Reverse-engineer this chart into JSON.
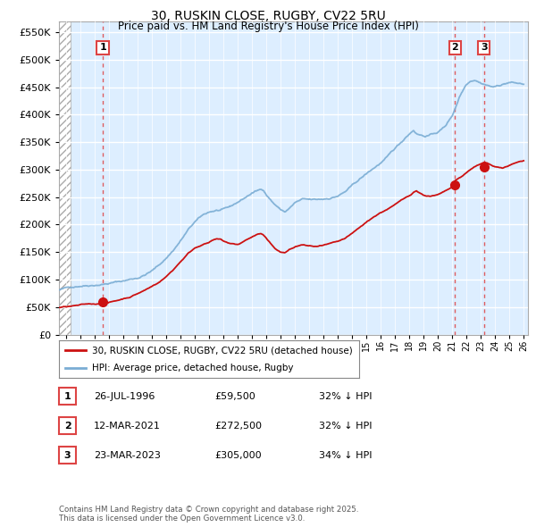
{
  "title": "30, RUSKIN CLOSE, RUGBY, CV22 5RU",
  "subtitle": "Price paid vs. HM Land Registry's House Price Index (HPI)",
  "ylim": [
    0,
    570000
  ],
  "yticks": [
    0,
    50000,
    100000,
    150000,
    200000,
    250000,
    300000,
    350000,
    400000,
    450000,
    500000,
    550000
  ],
  "xlim_start": 1993.5,
  "xlim_end": 2026.3,
  "hatch_end": 1994.3,
  "transactions": [
    {
      "year": 1996.57,
      "price": 59500,
      "label": "1"
    },
    {
      "year": 2021.19,
      "price": 272500,
      "label": "2"
    },
    {
      "year": 2023.22,
      "price": 305000,
      "label": "3"
    }
  ],
  "hpi_color": "#7aadd4",
  "price_color": "#cc1111",
  "dashed_line_color": "#dd4444",
  "bg_color": "#ddeeff",
  "hatch_color": "#cccccc",
  "grid_color": "#ffffff",
  "legend_entries": [
    "30, RUSKIN CLOSE, RUGBY, CV22 5RU (detached house)",
    "HPI: Average price, detached house, Rugby"
  ],
  "table_rows": [
    {
      "num": "1",
      "date": "26-JUL-1996",
      "price": "£59,500",
      "hpi": "32% ↓ HPI"
    },
    {
      "num": "2",
      "date": "12-MAR-2021",
      "price": "£272,500",
      "hpi": "32% ↓ HPI"
    },
    {
      "num": "3",
      "date": "23-MAR-2023",
      "price": "£305,000",
      "hpi": "34% ↓ HPI"
    }
  ],
  "footer": "Contains HM Land Registry data © Crown copyright and database right 2025.\nThis data is licensed under the Open Government Licence v3.0.",
  "hpi_knots": [
    [
      1993.5,
      80000
    ],
    [
      1994.0,
      83000
    ],
    [
      1994.5,
      86000
    ],
    [
      1995.0,
      89000
    ],
    [
      1995.5,
      91000
    ],
    [
      1996.0,
      93000
    ],
    [
      1996.5,
      95000
    ],
    [
      1997.0,
      97000
    ],
    [
      1997.5,
      99000
    ],
    [
      1998.0,
      101000
    ],
    [
      1998.5,
      104000
    ],
    [
      1999.0,
      107000
    ],
    [
      1999.5,
      113000
    ],
    [
      2000.0,
      120000
    ],
    [
      2000.5,
      130000
    ],
    [
      2001.0,
      143000
    ],
    [
      2001.5,
      158000
    ],
    [
      2002.0,
      175000
    ],
    [
      2002.5,
      193000
    ],
    [
      2003.0,
      208000
    ],
    [
      2003.5,
      218000
    ],
    [
      2004.0,
      225000
    ],
    [
      2004.5,
      228000
    ],
    [
      2005.0,
      228000
    ],
    [
      2005.5,
      232000
    ],
    [
      2006.0,
      240000
    ],
    [
      2006.5,
      248000
    ],
    [
      2007.0,
      257000
    ],
    [
      2007.5,
      262000
    ],
    [
      2007.8,
      263000
    ],
    [
      2008.0,
      255000
    ],
    [
      2008.5,
      240000
    ],
    [
      2009.0,
      228000
    ],
    [
      2009.3,
      224000
    ],
    [
      2009.7,
      232000
    ],
    [
      2010.0,
      240000
    ],
    [
      2010.5,
      245000
    ],
    [
      2011.0,
      243000
    ],
    [
      2011.5,
      242000
    ],
    [
      2012.0,
      243000
    ],
    [
      2012.5,
      246000
    ],
    [
      2013.0,
      250000
    ],
    [
      2013.5,
      257000
    ],
    [
      2014.0,
      267000
    ],
    [
      2014.5,
      278000
    ],
    [
      2015.0,
      288000
    ],
    [
      2015.5,
      298000
    ],
    [
      2016.0,
      308000
    ],
    [
      2016.5,
      318000
    ],
    [
      2017.0,
      332000
    ],
    [
      2017.5,
      345000
    ],
    [
      2017.8,
      355000
    ],
    [
      2018.0,
      360000
    ],
    [
      2018.3,
      368000
    ],
    [
      2018.5,
      362000
    ],
    [
      2019.0,
      358000
    ],
    [
      2019.5,
      360000
    ],
    [
      2020.0,
      365000
    ],
    [
      2020.5,
      375000
    ],
    [
      2021.0,
      395000
    ],
    [
      2021.3,
      415000
    ],
    [
      2021.5,
      430000
    ],
    [
      2021.8,
      445000
    ],
    [
      2022.0,
      455000
    ],
    [
      2022.3,
      462000
    ],
    [
      2022.6,
      465000
    ],
    [
      2023.0,
      460000
    ],
    [
      2023.3,
      458000
    ],
    [
      2023.6,
      455000
    ],
    [
      2024.0,
      453000
    ],
    [
      2024.5,
      458000
    ],
    [
      2025.0,
      462000
    ],
    [
      2025.5,
      460000
    ],
    [
      2026.0,
      458000
    ]
  ],
  "price_knots": [
    [
      1993.5,
      54000
    ],
    [
      1994.0,
      55000
    ],
    [
      1994.5,
      56000
    ],
    [
      1995.0,
      57000
    ],
    [
      1995.5,
      58000
    ],
    [
      1996.0,
      58500
    ],
    [
      1996.57,
      59500
    ],
    [
      1997.0,
      62000
    ],
    [
      1997.5,
      65000
    ],
    [
      1998.0,
      69000
    ],
    [
      1998.5,
      73000
    ],
    [
      1999.0,
      79000
    ],
    [
      1999.5,
      85000
    ],
    [
      2000.0,
      92000
    ],
    [
      2000.5,
      100000
    ],
    [
      2001.0,
      110000
    ],
    [
      2001.5,
      123000
    ],
    [
      2002.0,
      138000
    ],
    [
      2002.5,
      152000
    ],
    [
      2003.0,
      163000
    ],
    [
      2003.5,
      170000
    ],
    [
      2004.0,
      174000
    ],
    [
      2004.3,
      178000
    ],
    [
      2004.5,
      179000
    ],
    [
      2004.8,
      178000
    ],
    [
      2005.0,
      175000
    ],
    [
      2005.5,
      170000
    ],
    [
      2006.0,
      168000
    ],
    [
      2006.3,
      172000
    ],
    [
      2006.7,
      178000
    ],
    [
      2007.0,
      182000
    ],
    [
      2007.3,
      186000
    ],
    [
      2007.6,
      188000
    ],
    [
      2007.8,
      185000
    ],
    [
      2008.0,
      178000
    ],
    [
      2008.3,
      168000
    ],
    [
      2008.6,
      160000
    ],
    [
      2009.0,
      153000
    ],
    [
      2009.3,
      152000
    ],
    [
      2009.6,
      157000
    ],
    [
      2010.0,
      162000
    ],
    [
      2010.5,
      166000
    ],
    [
      2011.0,
      163000
    ],
    [
      2011.5,
      162000
    ],
    [
      2012.0,
      163000
    ],
    [
      2012.5,
      165000
    ],
    [
      2013.0,
      167000
    ],
    [
      2013.5,
      172000
    ],
    [
      2014.0,
      180000
    ],
    [
      2014.5,
      190000
    ],
    [
      2015.0,
      200000
    ],
    [
      2015.5,
      210000
    ],
    [
      2016.0,
      218000
    ],
    [
      2016.5,
      225000
    ],
    [
      2017.0,
      232000
    ],
    [
      2017.5,
      240000
    ],
    [
      2018.0,
      248000
    ],
    [
      2018.3,
      255000
    ],
    [
      2018.5,
      258000
    ],
    [
      2018.7,
      254000
    ],
    [
      2019.0,
      250000
    ],
    [
      2019.5,
      248000
    ],
    [
      2020.0,
      250000
    ],
    [
      2020.5,
      255000
    ],
    [
      2021.0,
      262000
    ],
    [
      2021.19,
      272500
    ],
    [
      2021.5,
      278000
    ],
    [
      2021.8,
      283000
    ],
    [
      2022.0,
      288000
    ],
    [
      2022.3,
      293000
    ],
    [
      2022.6,
      298000
    ],
    [
      2023.0,
      302000
    ],
    [
      2023.22,
      305000
    ],
    [
      2023.5,
      303000
    ],
    [
      2023.8,
      300000
    ],
    [
      2024.0,
      298000
    ],
    [
      2024.5,
      296000
    ],
    [
      2025.0,
      300000
    ],
    [
      2025.5,
      305000
    ],
    [
      2026.0,
      308000
    ]
  ]
}
